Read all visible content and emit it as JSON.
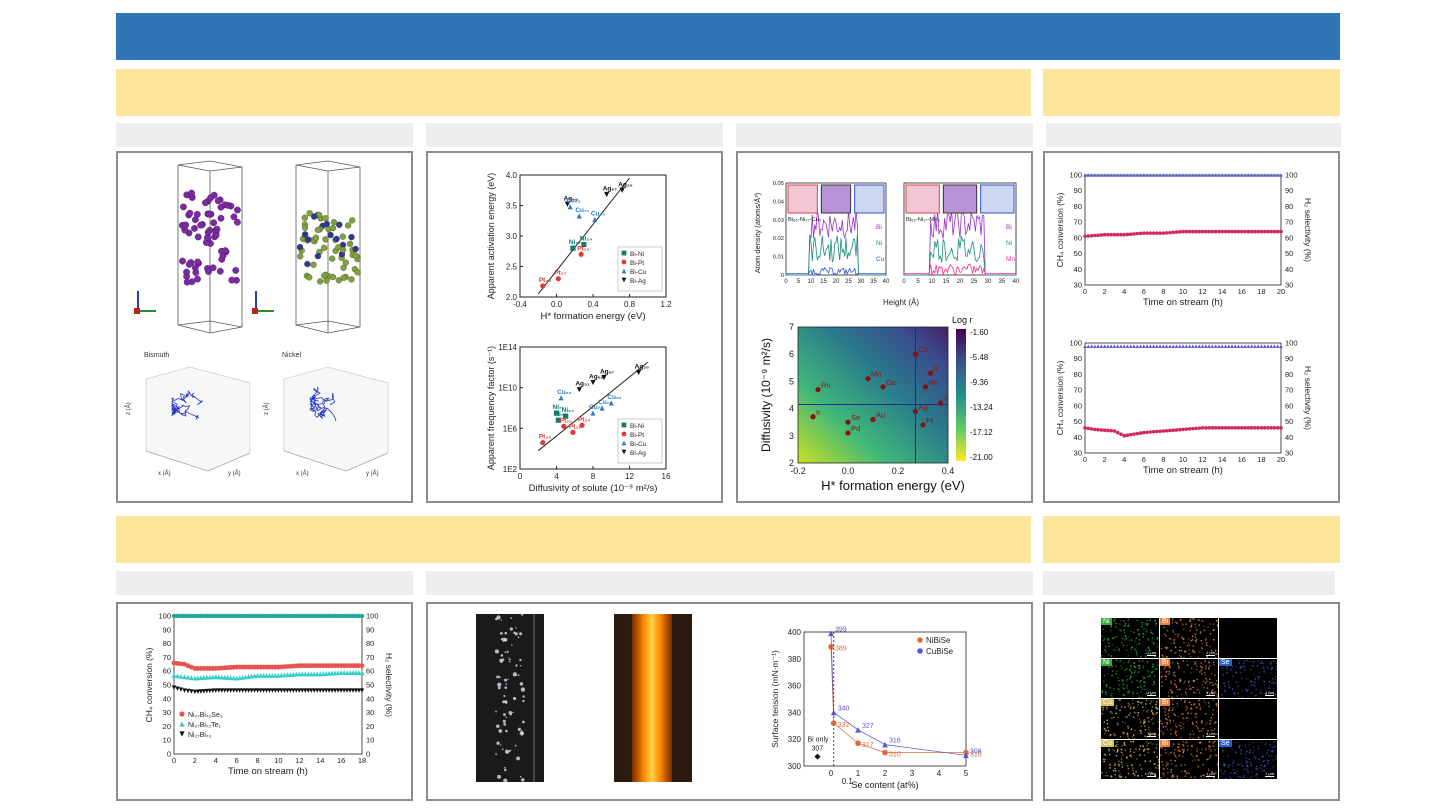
{
  "slide": {
    "title": "",
    "accent": "#2f75b5",
    "section_color": "#fde699"
  },
  "simulation": {
    "label_left": "Bismuth",
    "label_right": "Nickel",
    "axis_x": "x (Å)",
    "axis_y": "y (Å)",
    "axis_z": "z (Å)"
  },
  "chart_data": [
    {
      "type": "scatter",
      "title": "",
      "xlabel": "H* formation energy (eV)",
      "ylabel": "Apparent activation energy (eV)",
      "xlim": [
        -0.4,
        1.2
      ],
      "ylim": [
        2.0,
        4.0
      ],
      "xticks": [
        "-0.4",
        "0.0",
        "0.4",
        "0.8",
        "1.2"
      ],
      "yticks": [
        "2.0",
        "2.5",
        "3.0",
        "3.5",
        "4.0"
      ],
      "legend": [
        "Bi-Ni",
        "Bi-Pt",
        "Bi-Cu",
        "Bi-Ag"
      ],
      "points": [
        {
          "label": "Ag₆₉",
          "series": "Bi-Ag",
          "x": 0.12,
          "y": 3.52
        },
        {
          "label": "Ag₆₇",
          "series": "Bi-Ag",
          "x": 0.55,
          "y": 3.68
        },
        {
          "label": "Ag₂₆",
          "series": "Bi-Ag",
          "x": 0.72,
          "y": 3.75
        },
        {
          "label": "Cu₆₂",
          "series": "Bi-Cu",
          "x": 0.15,
          "y": 3.48
        },
        {
          "label": "Cu₇₁",
          "series": "Bi-Cu",
          "x": 0.25,
          "y": 3.33
        },
        {
          "label": "Cu₂₀",
          "series": "Bi-Cu",
          "x": 0.42,
          "y": 3.27
        },
        {
          "label": "Ni₇₇",
          "series": "Bi-Ni",
          "x": 0.18,
          "y": 2.8
        },
        {
          "label": "Ni₂₄",
          "series": "Bi-Ni",
          "x": 0.3,
          "y": 2.86
        },
        {
          "label": "Pt₂₉",
          "series": "Bi-Pt",
          "x": 0.27,
          "y": 2.7
        },
        {
          "label": "Pt₂₇",
          "series": "Bi-Pt",
          "x": 0.02,
          "y": 2.3
        },
        {
          "label": "Pt₃₅",
          "series": "Bi-Pt",
          "x": -0.15,
          "y": 2.18
        }
      ]
    },
    {
      "type": "scatter",
      "title": "",
      "xlabel": "Diffusivity of solute (10⁻⁹ m²/s)",
      "ylabel": "Apparent frequency factor (s⁻¹)",
      "xlim": [
        0,
        16
      ],
      "ylim": [
        2,
        14
      ],
      "xticks": [
        "0",
        "4",
        "8",
        "12",
        "16"
      ],
      "yticks": [
        "1E2",
        "1E6",
        "1E10",
        "1E14"
      ],
      "legend": [
        "Bi-Ni",
        "Bi-Pt",
        "Bi-Cu",
        "Bi-Ag"
      ],
      "points": [
        {
          "label": "Ag₂₆",
          "series": "Bi-Ag",
          "x": 13.0,
          "y": 11.5
        },
        {
          "label": "Ag₆₇",
          "series": "Bi-Ag",
          "x": 9.2,
          "y": 11.0
        },
        {
          "label": "Ag₆₉",
          "series": "Bi-Ag",
          "x": 8.0,
          "y": 10.5
        },
        {
          "label": "Ag₃₁",
          "series": "Bi-Ag",
          "x": 6.5,
          "y": 9.8
        },
        {
          "label": "Cu₆₂",
          "series": "Bi-Cu",
          "x": 4.5,
          "y": 9.0
        },
        {
          "label": "Cu₂₀",
          "series": "Bi-Cu",
          "x": 10.0,
          "y": 8.5
        },
        {
          "label": "Cu₇₁",
          "series": "Bi-Cu",
          "x": 9.0,
          "y": 8.0
        },
        {
          "label": "Cu₇₇",
          "series": "Bi-Cu",
          "x": 8.0,
          "y": 7.5
        },
        {
          "label": "Ni₇₁",
          "series": "Bi-Ni",
          "x": 4.0,
          "y": 7.5
        },
        {
          "label": "Ni₂₄",
          "series": "Bi-Ni",
          "x": 5.0,
          "y": 7.2
        },
        {
          "label": "Ni₇₇",
          "series": "Bi-Ni",
          "x": 4.2,
          "y": 6.8
        },
        {
          "label": "Pt₂₉",
          "series": "Bi-Pt",
          "x": 4.8,
          "y": 6.2
        },
        {
          "label": "Pt₂₄",
          "series": "Bi-Pt",
          "x": 6.8,
          "y": 6.3
        },
        {
          "label": "Pt₂₁",
          "series": "Bi-Pt",
          "x": 5.8,
          "y": 5.6
        },
        {
          "label": "Pt₃₅",
          "series": "Bi-Pt",
          "x": 2.5,
          "y": 4.6
        }
      ]
    },
    {
      "type": "line",
      "title": "",
      "xlabel": "Height (Å)",
      "ylabel": "Atom density (atoms/Å³)",
      "ylim": [
        0,
        0.05
      ],
      "xticks": [
        "0",
        "5",
        "10",
        "15",
        "20",
        "25",
        "30",
        "35",
        "40"
      ],
      "yticks": [
        "0",
        "0.01",
        "0.02",
        "0.03",
        "0.04",
        "0.05"
      ],
      "panels": [
        {
          "label": "Bi₆₆-Ni₂₇-Cu₅",
          "series": [
            "Bi",
            "Ni",
            "Cu"
          ]
        },
        {
          "label": "Bi₆₆-Ni₂₇-Mn₅",
          "series": [
            "Bi",
            "Ni",
            "Mn"
          ]
        }
      ]
    },
    {
      "type": "heatmap",
      "title": "",
      "xlabel": "H* formation energy (eV)",
      "ylabel": "Diffusivity (10⁻⁹ m²/s)",
      "xlim": [
        -0.2,
        0.4
      ],
      "ylim": [
        2,
        7
      ],
      "xticks": [
        "-0.2",
        "0.0",
        "0.2",
        "0.4"
      ],
      "yticks": [
        "2",
        "3",
        "4",
        "5",
        "6",
        "7"
      ],
      "colorbar_title": "Log r",
      "colorbar_ticks": [
        "-1.60",
        "-5.48",
        "-9.36",
        "-13.24",
        "-17.12",
        "-21.00"
      ],
      "points": [
        {
          "label": "Cu",
          "x": 0.27,
          "y": 6.0
        },
        {
          "label": "Ir",
          "x": 0.33,
          "y": 5.3
        },
        {
          "label": "Mn",
          "x": 0.08,
          "y": 5.1
        },
        {
          "label": "Os",
          "x": 0.14,
          "y": 4.8
        },
        {
          "label": "Rh",
          "x": 0.31,
          "y": 4.8
        },
        {
          "label": "Ru",
          "x": -0.12,
          "y": 4.7
        },
        {
          "label": "V",
          "x": 0.37,
          "y": 4.2
        },
        {
          "label": "Ir",
          "x": -0.14,
          "y": 3.7
        },
        {
          "label": "Se",
          "x": 0.0,
          "y": 3.5
        },
        {
          "label": "Au",
          "x": 0.1,
          "y": 3.6
        },
        {
          "label": "Ag",
          "x": 0.27,
          "y": 3.9
        },
        {
          "label": "Pt",
          "x": 0.3,
          "y": 3.4
        },
        {
          "label": "Pd",
          "x": 0.0,
          "y": 3.1
        }
      ]
    },
    {
      "type": "line",
      "title": "",
      "xlabel": "Time on stream (h)",
      "ylabel": "CH₄ conversion (%)",
      "y2label": "H₂ selectivity (%)",
      "xlim": [
        0,
        20
      ],
      "ylim": [
        30,
        100
      ],
      "xticks": [
        "0",
        "2",
        "4",
        "6",
        "8",
        "10",
        "12",
        "14",
        "16",
        "18",
        "20"
      ],
      "yticks": [
        "30",
        "40",
        "50",
        "60",
        "70",
        "80",
        "90",
        "100"
      ],
      "series": [
        {
          "name": "CH₄ conversion",
          "x": [
            0,
            2,
            4,
            6,
            8,
            10,
            12,
            14,
            16,
            18,
            20
          ],
          "values": [
            61,
            62,
            62,
            63,
            63,
            64,
            64,
            64,
            64,
            64,
            64
          ]
        },
        {
          "name": "H₂ selectivity",
          "x": [
            0,
            2,
            4,
            6,
            8,
            10,
            12,
            14,
            16,
            18,
            20
          ],
          "values": [
            100,
            100,
            100,
            100,
            100,
            100,
            100,
            100,
            100,
            100,
            100
          ]
        }
      ]
    },
    {
      "type": "line",
      "title": "",
      "xlabel": "Time on stream (h)",
      "ylabel": "CH₄ conversion (%)",
      "y2label": "H₂ selectivity (%)",
      "xlim": [
        0,
        20
      ],
      "ylim": [
        30,
        100
      ],
      "xticks": [
        "0",
        "2",
        "4",
        "6",
        "8",
        "10",
        "12",
        "14",
        "16",
        "18",
        "20"
      ],
      "yticks": [
        "30",
        "40",
        "50",
        "60",
        "70",
        "80",
        "90",
        "100"
      ],
      "series": [
        {
          "name": "CH₄ conversion",
          "x": [
            0,
            1,
            3,
            4,
            5,
            6,
            8,
            10,
            12,
            14,
            16,
            18,
            20
          ],
          "values": [
            46,
            45,
            44,
            41,
            42,
            43,
            44,
            45,
            46,
            46,
            46,
            46,
            46
          ]
        },
        {
          "name": "H₂ selectivity",
          "x": [
            0,
            2,
            4,
            6,
            8,
            10,
            12,
            14,
            16,
            18,
            20
          ],
          "values": [
            98,
            98,
            98,
            98,
            98,
            98,
            98,
            98,
            98,
            98,
            98
          ]
        }
      ]
    },
    {
      "type": "line",
      "title": "",
      "xlabel": "Time on stream (h)",
      "ylabel": "CH₄ conversion (%)",
      "y2label": "H₂ selectivity (%)",
      "xlim": [
        0,
        18
      ],
      "ylim": [
        0,
        100
      ],
      "xticks": [
        "0",
        "2",
        "4",
        "6",
        "8",
        "10",
        "12",
        "14",
        "16",
        "18"
      ],
      "yticks": [
        "0",
        "10",
        "20",
        "30",
        "40",
        "50",
        "60",
        "70",
        "80",
        "90",
        "100"
      ],
      "series": [
        {
          "name": "Ni₂₇Bi₇₀Se₃",
          "x": [
            0,
            1,
            2,
            4,
            6,
            8,
            10,
            12,
            14,
            16,
            18
          ],
          "values": [
            66,
            65,
            62,
            62,
            63,
            63,
            63,
            64,
            64,
            64,
            64
          ]
        },
        {
          "name": "Ni₂₇Bi₇₂Te₁",
          "x": [
            0,
            1,
            2,
            4,
            6,
            8,
            10,
            12,
            14,
            16,
            18
          ],
          "values": [
            57,
            56,
            55,
            56,
            55,
            57,
            57,
            58,
            58,
            59,
            59
          ]
        },
        {
          "name": "Ni₂₇Bi₇₃",
          "x": [
            0,
            1,
            2,
            4,
            6,
            8,
            10,
            12,
            14,
            16,
            18
          ],
          "values": [
            48,
            46,
            45,
            46,
            46,
            46,
            46,
            46,
            46,
            46,
            46
          ]
        },
        {
          "name": "H₂ selectivity",
          "x": [
            0,
            2,
            4,
            6,
            8,
            10,
            12,
            14,
            16,
            18
          ],
          "values": [
            100,
            100,
            100,
            100,
            100,
            100,
            100,
            100,
            100,
            100
          ]
        }
      ]
    },
    {
      "type": "scatter",
      "title": "",
      "xlabel": "Se content (at%)",
      "ylabel": "Surface tension (mN·m⁻¹)",
      "xlim": [
        -1,
        5
      ],
      "ylim": [
        300,
        400
      ],
      "xticks": [
        "0",
        "1",
        "2",
        "3",
        "4",
        "5"
      ],
      "yticks": [
        "300",
        "320",
        "340",
        "360",
        "380",
        "400"
      ],
      "legend": [
        "NiBiSe",
        "CuBiSe"
      ],
      "extra_labels": [
        "Bi only",
        "307",
        "0.1"
      ],
      "series": [
        {
          "name": "NiBiSe",
          "x": [
            0,
            0.1,
            1,
            2,
            5
          ],
          "values": [
            389,
            332,
            317,
            310,
            310
          ]
        },
        {
          "name": "CuBiSe",
          "x": [
            0,
            0.1,
            1,
            2,
            5
          ],
          "values": [
            399,
            340,
            327,
            316,
            308
          ]
        }
      ],
      "bi_only": 307
    }
  ],
  "maps": {
    "elements": [
      "Ni",
      "Bi",
      "Ni",
      "Bi",
      "Se",
      "Cu",
      "Bi",
      "Cu",
      "Bi",
      "Se"
    ],
    "scale": "1 μm"
  }
}
